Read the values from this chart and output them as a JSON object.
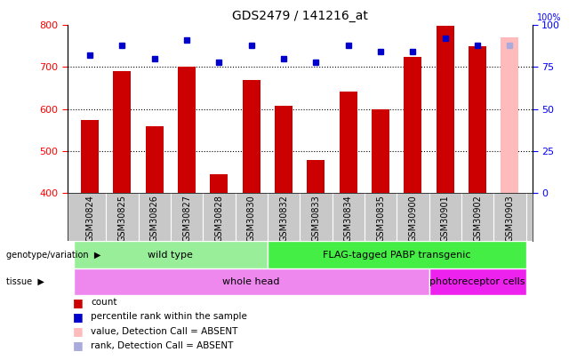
{
  "title": "GDS2479 / 141216_at",
  "samples": [
    "GSM30824",
    "GSM30825",
    "GSM30826",
    "GSM30827",
    "GSM30828",
    "GSM30830",
    "GSM30832",
    "GSM30833",
    "GSM30834",
    "GSM30835",
    "GSM30900",
    "GSM30901",
    "GSM30902",
    "GSM30903"
  ],
  "counts": [
    573,
    690,
    558,
    700,
    443,
    670,
    607,
    477,
    641,
    599,
    724,
    798,
    750,
    770
  ],
  "percentile_ranks": [
    82,
    88,
    80,
    91,
    78,
    88,
    80,
    78,
    88,
    84,
    84,
    92,
    88,
    88
  ],
  "absent_flags": [
    false,
    false,
    false,
    false,
    false,
    false,
    false,
    false,
    false,
    false,
    false,
    false,
    false,
    true
  ],
  "ylim_left": [
    400,
    800
  ],
  "ylim_right": [
    0,
    100
  ],
  "yticks_left": [
    400,
    500,
    600,
    700,
    800
  ],
  "yticks_right": [
    0,
    25,
    50,
    75,
    100
  ],
  "bar_color": "#cc0000",
  "bar_color_absent": "#ffbbbb",
  "dot_color": "#0000cc",
  "dot_color_absent": "#aaaadd",
  "genotype_groups": [
    {
      "label": "wild type",
      "start": 0,
      "end": 5,
      "color": "#99ee99"
    },
    {
      "label": "FLAG-tagged PABP transgenic",
      "start": 6,
      "end": 13,
      "color": "#44ee44"
    }
  ],
  "tissue_groups": [
    {
      "label": "whole head",
      "start": 0,
      "end": 10,
      "color": "#ee88ee"
    },
    {
      "label": "photoreceptor cells",
      "start": 11,
      "end": 13,
      "color": "#ee22ee"
    }
  ],
  "legend_items": [
    {
      "label": "count",
      "color": "#cc0000"
    },
    {
      "label": "percentile rank within the sample",
      "color": "#0000cc"
    },
    {
      "label": "value, Detection Call = ABSENT",
      "color": "#ffbbbb"
    },
    {
      "label": "rank, Detection Call = ABSENT",
      "color": "#aaaadd"
    }
  ],
  "bar_width": 0.55,
  "dot_size": 5,
  "title_fontsize": 10,
  "tick_label_fontsize": 7,
  "label_fontsize": 8,
  "sample_bg_color": "#c8c8c8",
  "plot_bg_color": "#ffffff"
}
